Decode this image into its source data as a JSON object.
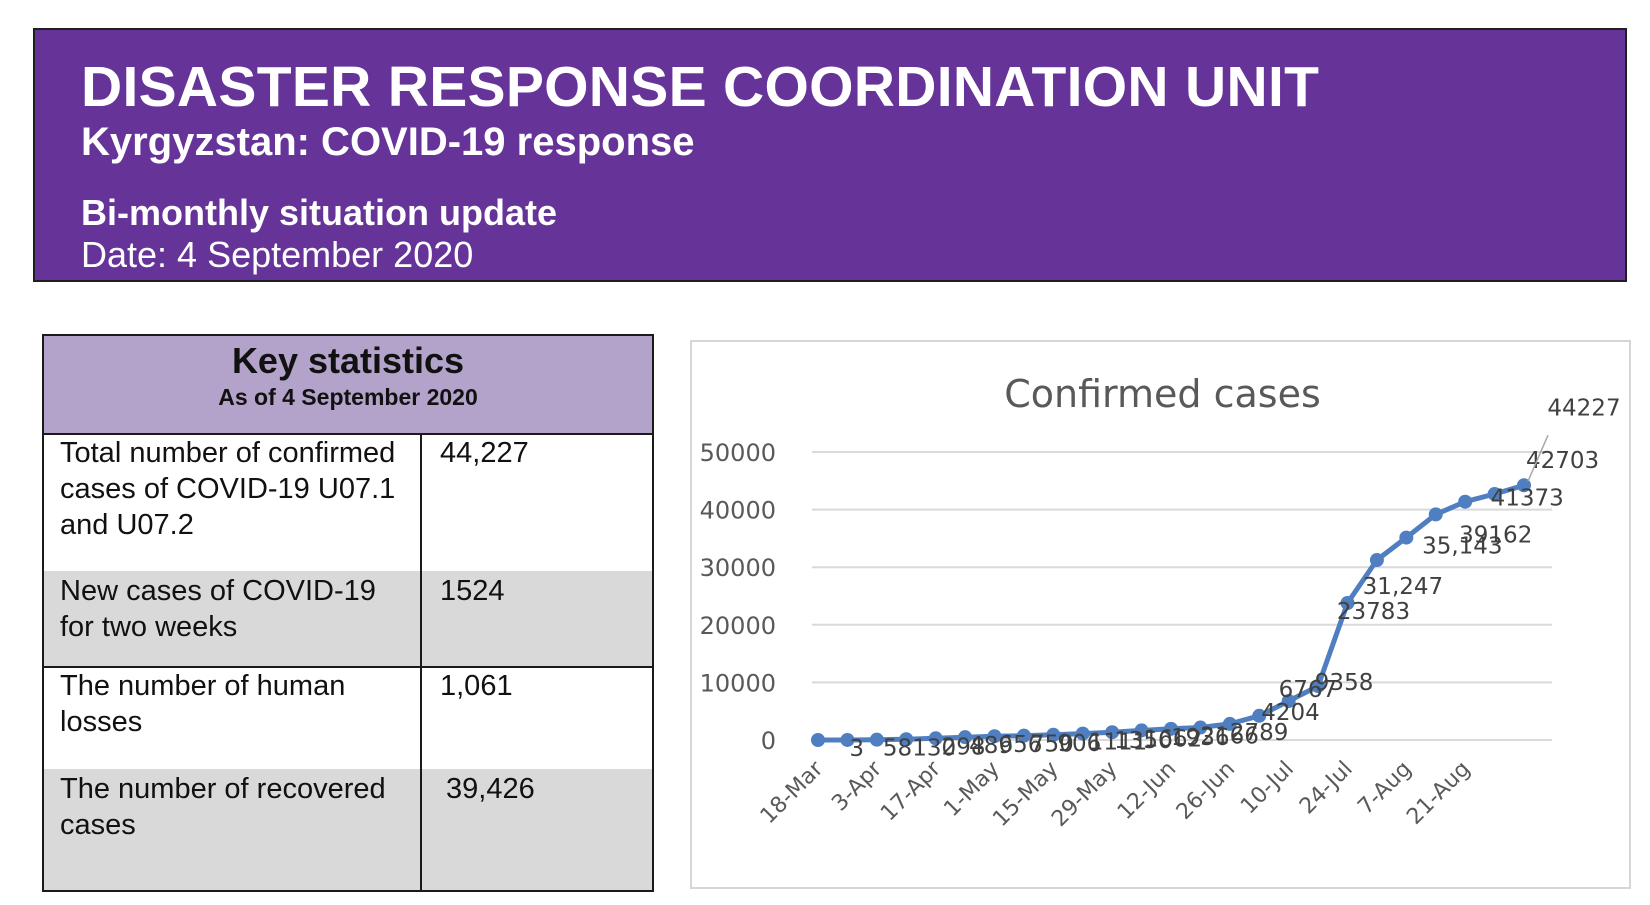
{
  "header": {
    "title": "DISASTER RESPONSE COORDINATION UNIT",
    "subtitle": "Kyrgyzstan: COVID-19 response",
    "report_type": "Bi-monthly situation update",
    "date": "Date: 4 September  2020"
  },
  "key_statistics": {
    "title": "Key statistics",
    "as_of": "As of 4 September  2020",
    "rows": [
      {
        "label": "Total number of confirmed cases of COVID-19 U07.1 and U07.2",
        "value": "44,227"
      },
      {
        "label": "New cases of COVID-19 for two weeks",
        "value": "1524"
      },
      {
        "label": "The number of human losses",
        "value": "1,061"
      },
      {
        "label": "The number of recovered cases",
        "value": "39,426"
      }
    ]
  },
  "colors": {
    "banner": "#663399",
    "table_header": "#b3a2c9",
    "row_shade": "#d9d9d9",
    "series_line": "#4f7fc1",
    "gridline": "#d9d9d9"
  },
  "chart_data": {
    "type": "line",
    "title": "Confirmed cases",
    "xlabel": "",
    "ylabel": "",
    "ylim": [
      0,
      50000
    ],
    "yticks": [
      0,
      10000,
      20000,
      30000,
      40000,
      50000
    ],
    "xticks": [
      "18-Mar",
      "3-Apr",
      "17-Apr",
      "1-May",
      "15-May",
      "29-May",
      "12-Jun",
      "26-Jun",
      "10-Jul",
      "24-Jul",
      "7-Aug",
      "21-Aug"
    ],
    "grid": true,
    "legend": "none",
    "series": [
      {
        "values": [
          0,
          3,
          58,
          130,
          298,
          489,
          656,
          750,
          906,
          1111,
          1350,
          1662,
          1936,
          2166,
          2789,
          4204,
          6767,
          9358,
          23783,
          31247,
          35143,
          39162,
          41373,
          42703,
          44227
        ],
        "labels": [
          "",
          "3",
          "58",
          "130",
          "298",
          "489",
          "656",
          "750",
          "906",
          "1111",
          "1350",
          "1662",
          "1936",
          "2166",
          "2789",
          "4204",
          "6767",
          "9358",
          "23783",
          "31,247",
          "35,143",
          "39162",
          "41373",
          "42703",
          "44227"
        ]
      }
    ]
  }
}
